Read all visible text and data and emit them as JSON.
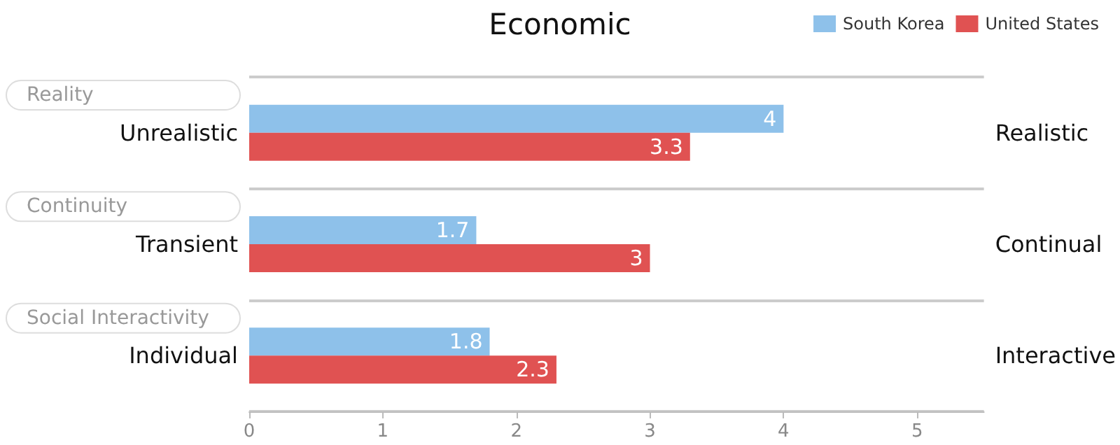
{
  "chart_data": {
    "type": "bar",
    "orientation": "horizontal",
    "title": "Economic",
    "categories": [
      "Unrealistic",
      "Transient",
      "Individual"
    ],
    "y2_categories": [
      "Realistic",
      "Continual",
      "Interactive"
    ],
    "annotations": [
      "Reality",
      "Continuity",
      "Social Interactivity"
    ],
    "series": [
      {
        "name": "South Korea",
        "color": "#8ec1ea",
        "values": [
          4,
          1.7,
          1.8
        ]
      },
      {
        "name": "United States",
        "color": "#e05252",
        "values": [
          3.3,
          3,
          2.3
        ]
      }
    ],
    "xlim": [
      0,
      5.5
    ],
    "xticks": [
      0,
      1,
      2,
      3,
      4,
      5
    ],
    "data_labels": true,
    "grid": "y",
    "legend": "top right"
  }
}
